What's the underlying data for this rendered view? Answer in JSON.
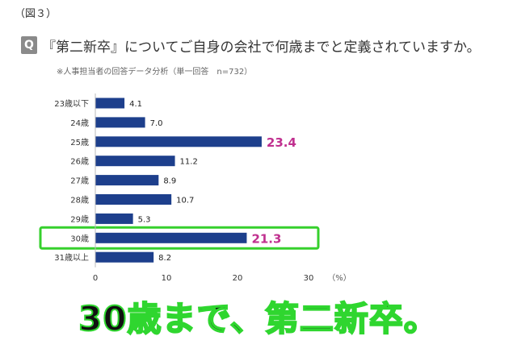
{
  "header": {
    "figure_label": "（図３）",
    "q_badge": "Q",
    "question": "『第二新卒』についてご自身の会社で何歳までと定義されていますか。",
    "note": "※人事担当者の回答データ分析（単一回答　n=732）"
  },
  "chart_data": {
    "type": "bar",
    "orientation": "horizontal",
    "categories": [
      "23歳以下",
      "24歳",
      "25歳",
      "26歳",
      "27歳",
      "28歳",
      "29歳",
      "30歳",
      "31歳以上"
    ],
    "values": [
      4.1,
      7.0,
      23.4,
      11.2,
      8.9,
      10.7,
      5.3,
      21.3,
      8.2
    ],
    "value_labels": [
      "4.1",
      "7.0",
      "23.4",
      "11.2",
      "8.9",
      "10.7",
      "5.3",
      "21.3",
      "8.2"
    ],
    "highlight_indices": [
      2,
      7
    ],
    "boxed_index": 7,
    "xlim": [
      0,
      30
    ],
    "xticks": [
      "0",
      "10",
      "20",
      "30"
    ],
    "unit_label": "（%）",
    "bar_color": "#1d3f8c",
    "highlight_label_color": "#c0308f",
    "box_color": "#36d02c"
  },
  "caption": "30歳まで、第二新卒。"
}
